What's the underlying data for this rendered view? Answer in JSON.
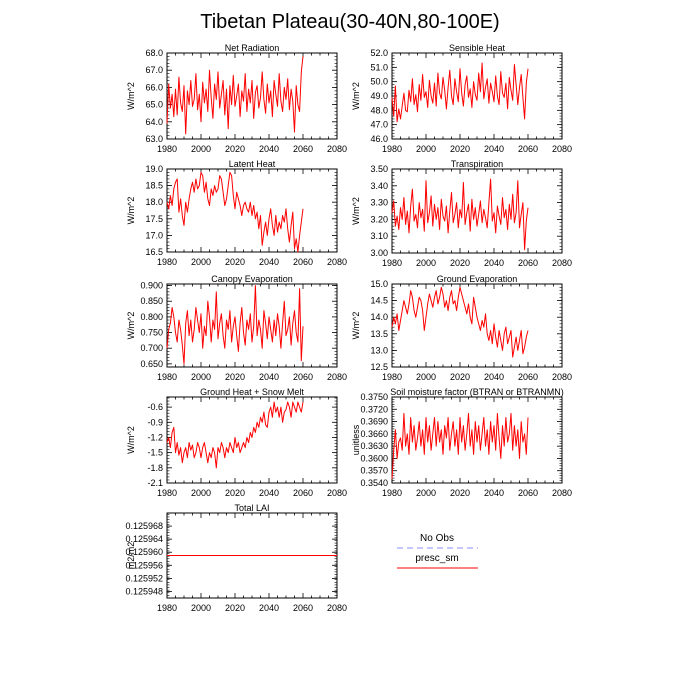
{
  "figure": {
    "title": "Tibetan Plateau(30-40N,80-100E)"
  },
  "colors": {
    "model": "#ff0000",
    "obs": "#8c8cff",
    "axis": "#000000"
  },
  "legend": [
    {
      "label": "No Obs",
      "style": "dashed",
      "color": "#8c8cff"
    },
    {
      "label": "presc_sm",
      "style": "solid",
      "color": "#ff0000"
    }
  ],
  "chart_data": [
    {
      "type": "line",
      "title": "Net Radiation",
      "xlabel": "",
      "ylabel": "W/m^2",
      "xlim": [
        1980,
        2080
      ],
      "ylim": [
        63.0,
        68.0
      ],
      "xticks": [
        "1980",
        "2000",
        "2020",
        "2040",
        "2060",
        "2080"
      ],
      "yticks": [
        "63.0",
        "64.0",
        "65.0",
        "66.0",
        "67.0",
        "68.0"
      ],
      "series": [
        {
          "name": "presc_sm",
          "x_start": 1980,
          "values": [
            63.9,
            66.2,
            64.8,
            65.6,
            64.3,
            65.9,
            64.4,
            66.6,
            65.1,
            64.6,
            66.1,
            63.3,
            65.8,
            65.0,
            66.4,
            64.9,
            65.3,
            66.8,
            64.7,
            65.6,
            64.0,
            66.3,
            65.1,
            65.9,
            64.6,
            67.0,
            65.4,
            64.2,
            66.2,
            65.3,
            66.9,
            64.8,
            65.6,
            66.4,
            64.4,
            65.9,
            63.6,
            66.1,
            65.0,
            66.7,
            64.9,
            65.5,
            66.2,
            64.3,
            65.8,
            65.2,
            66.8,
            64.6,
            65.9,
            65.1,
            66.4,
            64.2,
            65.7,
            66.1,
            64.8,
            65.4,
            66.9,
            65.3,
            64.5,
            66.2,
            65.1,
            65.8,
            64.3,
            66.4,
            65.6,
            64.9,
            66.8,
            65.2,
            64.6,
            66.0,
            65.3,
            66.5,
            64.7,
            65.9,
            65.2,
            63.4,
            66.1,
            65.0,
            64.6,
            66.9,
            67.8
          ]
        }
      ]
    },
    {
      "type": "line",
      "title": "Sensible Heat",
      "xlabel": "",
      "ylabel": "W/m^2",
      "xlim": [
        1980,
        2080
      ],
      "ylim": [
        46.0,
        52.0
      ],
      "xticks": [
        "1980",
        "2000",
        "2020",
        "2040",
        "2060",
        "2080"
      ],
      "yticks": [
        "46.0",
        "47.0",
        "48.0",
        "49.0",
        "50.0",
        "51.0",
        "52.0"
      ],
      "series": [
        {
          "name": "presc_sm",
          "x_start": 1980,
          "values": [
            48.9,
            47.6,
            49.7,
            47.2,
            48.1,
            47.4,
            48.3,
            49.2,
            48.0,
            47.9,
            49.4,
            48.6,
            50.2,
            48.4,
            49.1,
            47.9,
            49.8,
            48.7,
            50.5,
            48.9,
            49.3,
            48.2,
            50.1,
            49.0,
            48.5,
            49.9,
            48.3,
            50.6,
            49.2,
            48.8,
            50.3,
            49.4,
            48.1,
            49.6,
            50.8,
            49.0,
            48.4,
            50.2,
            49.3,
            48.6,
            50.9,
            49.2,
            48.3,
            49.8,
            50.4,
            48.9,
            49.5,
            48.2,
            50.0,
            49.1,
            48.7,
            50.6,
            49.3,
            51.3,
            48.8,
            49.6,
            50.2,
            48.5,
            49.9,
            49.3,
            48.6,
            50.4,
            49.0,
            48.4,
            50.7,
            49.2,
            48.9,
            49.9,
            48.1,
            50.3,
            49.4,
            48.7,
            51.2,
            49.8,
            48.4,
            49.6,
            50.5,
            48.9,
            47.4,
            49.9,
            50.9
          ]
        }
      ]
    },
    {
      "type": "line",
      "title": "Latent Heat",
      "xlabel": "",
      "ylabel": "W/m^2",
      "xlim": [
        1980,
        2080
      ],
      "ylim": [
        16.5,
        19.0
      ],
      "xticks": [
        "1980",
        "2000",
        "2020",
        "2040",
        "2060",
        "2080"
      ],
      "yticks": [
        "16.5",
        "17.0",
        "17.5",
        "18.0",
        "18.5",
        "19.0"
      ],
      "series": [
        {
          "name": "presc_sm",
          "x_start": 1980,
          "values": [
            18.0,
            17.8,
            18.2,
            17.9,
            18.4,
            18.6,
            18.7,
            17.7,
            18.1,
            17.6,
            17.3,
            18.0,
            17.7,
            18.1,
            18.4,
            18.6,
            18.3,
            18.7,
            18.4,
            18.5,
            18.9,
            18.8,
            18.3,
            18.6,
            18.1,
            17.9,
            18.4,
            18.2,
            18.5,
            18.3,
            18.4,
            18.8,
            18.7,
            18.3,
            17.9,
            18.1,
            18.5,
            18.9,
            18.8,
            18.2,
            17.8,
            18.3,
            18.1,
            17.9,
            17.6,
            17.9,
            18.0,
            17.8,
            17.7,
            18.0,
            17.6,
            17.9,
            17.5,
            17.7,
            17.2,
            17.6,
            16.7,
            17.1,
            17.4,
            17.0,
            17.5,
            17.8,
            17.3,
            17.0,
            17.6,
            17.1,
            17.4,
            17.2,
            17.6,
            17.4,
            17.8,
            17.2,
            16.8,
            17.3,
            17.7,
            16.6,
            16.9,
            16.5,
            17.0,
            17.4,
            17.8
          ]
        }
      ]
    },
    {
      "type": "line",
      "title": "Transpiration",
      "xlabel": "",
      "ylabel": "W/m^2",
      "xlim": [
        1980,
        2080
      ],
      "ylim": [
        3.0,
        3.5
      ],
      "xticks": [
        "1980",
        "2000",
        "2020",
        "2040",
        "2060",
        "2080"
      ],
      "yticks": [
        "3.00",
        "3.10",
        "3.20",
        "3.30",
        "3.40",
        "3.50"
      ],
      "series": [
        {
          "name": "presc_sm",
          "x_start": 1980,
          "values": [
            3.24,
            3.31,
            3.16,
            3.22,
            3.14,
            3.27,
            3.2,
            3.33,
            3.17,
            3.25,
            3.12,
            3.28,
            3.38,
            3.19,
            3.23,
            3.15,
            3.3,
            3.21,
            3.26,
            3.13,
            3.43,
            3.18,
            3.24,
            3.34,
            3.16,
            3.29,
            3.2,
            3.27,
            3.14,
            3.32,
            3.22,
            3.19,
            3.28,
            3.12,
            3.25,
            3.36,
            3.18,
            3.23,
            3.3,
            3.15,
            3.26,
            3.21,
            3.42,
            3.17,
            3.24,
            3.29,
            3.13,
            3.32,
            3.2,
            3.27,
            3.16,
            3.23,
            3.31,
            3.18,
            3.26,
            3.21,
            3.15,
            3.3,
            3.44,
            3.19,
            3.24,
            3.12,
            3.28,
            3.22,
            3.17,
            3.33,
            3.21,
            3.26,
            3.14,
            3.29,
            3.2,
            3.35,
            3.18,
            3.24,
            3.43,
            3.15,
            3.23,
            3.3,
            3.02,
            3.19,
            3.27
          ]
        }
      ]
    },
    {
      "type": "line",
      "title": "Canopy Evaporation",
      "xlabel": "",
      "ylabel": "W/m^2",
      "xlim": [
        1980,
        2080
      ],
      "ylim": [
        0.64,
        0.905
      ],
      "xticks": [
        "1980",
        "2000",
        "2020",
        "2040",
        "2060",
        "2080"
      ],
      "yticks": [
        "0.650",
        "0.700",
        "0.750",
        "0.800",
        "0.850",
        "0.900"
      ],
      "series": [
        {
          "name": "presc_sm",
          "x_start": 1980,
          "values": [
            0.7,
            0.76,
            0.78,
            0.83,
            0.8,
            0.75,
            0.72,
            0.79,
            0.76,
            0.71,
            0.65,
            0.78,
            0.82,
            0.74,
            0.79,
            0.72,
            0.76,
            0.83,
            0.79,
            0.75,
            0.81,
            0.7,
            0.77,
            0.74,
            0.85,
            0.8,
            0.72,
            0.79,
            0.76,
            0.88,
            0.73,
            0.78,
            0.81,
            0.74,
            0.7,
            0.79,
            0.76,
            0.82,
            0.72,
            0.77,
            0.8,
            0.74,
            0.69,
            0.78,
            0.83,
            0.75,
            0.71,
            0.79,
            0.76,
            0.81,
            0.72,
            0.77,
            0.9,
            0.74,
            0.79,
            0.76,
            0.7,
            0.82,
            0.78,
            0.73,
            0.8,
            0.76,
            0.72,
            0.79,
            0.74,
            0.81,
            0.77,
            0.7,
            0.78,
            0.85,
            0.74,
            0.76,
            0.8,
            0.71,
            0.78,
            0.82,
            0.75,
            0.72,
            0.89,
            0.66,
            0.77
          ]
        }
      ]
    },
    {
      "type": "line",
      "title": "Ground Evaporation",
      "xlabel": "",
      "ylabel": "W/m^2",
      "xlim": [
        1980,
        2080
      ],
      "ylim": [
        12.5,
        15.0
      ],
      "xticks": [
        "1980",
        "2000",
        "2020",
        "2040",
        "2060",
        "2080"
      ],
      "yticks": [
        "12.5",
        "13.0",
        "13.5",
        "14.0",
        "14.5",
        "15.0"
      ],
      "series": [
        {
          "name": "presc_sm",
          "x_start": 1980,
          "values": [
            13.7,
            14.0,
            13.8,
            14.1,
            13.6,
            13.9,
            14.2,
            14.5,
            14.3,
            14.1,
            14.4,
            14.8,
            14.6,
            14.2,
            14.0,
            14.3,
            14.6,
            14.5,
            14.2,
            13.6,
            14.0,
            14.4,
            14.7,
            14.5,
            14.3,
            14.6,
            14.8,
            14.4,
            14.6,
            14.9,
            14.7,
            14.3,
            14.5,
            14.2,
            14.6,
            14.8,
            14.4,
            14.5,
            14.2,
            14.6,
            14.9,
            14.7,
            14.5,
            14.3,
            14.1,
            14.4,
            14.0,
            13.8,
            14.6,
            14.3,
            14.0,
            13.8,
            13.6,
            13.9,
            13.7,
            14.1,
            13.5,
            13.3,
            13.6,
            13.2,
            13.8,
            13.4,
            13.1,
            13.6,
            13.3,
            13.0,
            13.5,
            13.7,
            13.2,
            13.4,
            13.6,
            12.8,
            13.1,
            13.4,
            13.0,
            13.3,
            13.6,
            12.9,
            13.1,
            13.4,
            13.6
          ]
        }
      ]
    },
    {
      "type": "line",
      "title": "Ground Heat + Snow Melt",
      "xlabel": "",
      "ylabel": "W/m^2",
      "xlim": [
        1980,
        2080
      ],
      "ylim": [
        -2.1,
        -0.4
      ],
      "xticks": [
        "1980",
        "2000",
        "2020",
        "2040",
        "2060",
        "2080"
      ],
      "yticks": [
        "-2.1",
        "-1.8",
        "-1.5",
        "-1.2",
        "-0.9",
        "-0.6"
      ],
      "series": [
        {
          "name": "presc_sm",
          "x_start": 1980,
          "values": [
            -1.3,
            -1.2,
            -1.4,
            -1.1,
            -1.0,
            -1.5,
            -1.3,
            -1.55,
            -1.4,
            -1.7,
            -1.5,
            -1.4,
            -1.6,
            -1.3,
            -1.45,
            -1.35,
            -1.6,
            -1.5,
            -1.3,
            -1.4,
            -1.6,
            -1.4,
            -1.3,
            -1.5,
            -1.7,
            -1.5,
            -1.6,
            -1.4,
            -1.5,
            -1.8,
            -1.4,
            -1.5,
            -1.3,
            -1.4,
            -1.6,
            -1.4,
            -1.5,
            -1.3,
            -1.4,
            -1.5,
            -1.2,
            -1.4,
            -1.3,
            -1.5,
            -1.4,
            -1.3,
            -1.4,
            -1.2,
            -1.3,
            -1.1,
            -1.2,
            -1.0,
            -1.1,
            -0.9,
            -1.0,
            -0.8,
            -0.9,
            -0.7,
            -0.95,
            -1.0,
            -0.7,
            -0.6,
            -0.8,
            -0.5,
            -0.7,
            -0.6,
            -0.8,
            -0.6,
            -0.9,
            -0.7,
            -0.65,
            -0.5,
            -0.6,
            -0.8,
            -0.5,
            -0.6,
            -0.7,
            -0.5,
            -0.6,
            -0.7,
            -0.5
          ]
        }
      ]
    },
    {
      "type": "line",
      "title": "Soil moisture factor (BTRAN or BTRANMN)",
      "xlabel": "",
      "ylabel": "unitless",
      "xlim": [
        1980,
        2080
      ],
      "ylim": [
        0.354,
        0.375
      ],
      "xticks": [
        "1980",
        "2000",
        "2020",
        "2040",
        "2060",
        "2080"
      ],
      "yticks": [
        "0.3540",
        "0.3570",
        "0.3600",
        "0.3630",
        "0.3660",
        "0.3690",
        "0.3720",
        "0.3750"
      ],
      "series": [
        {
          "name": "presc_sm",
          "x_start": 1980,
          "values": [
            0.355,
            0.362,
            0.367,
            0.36,
            0.364,
            0.365,
            0.362,
            0.371,
            0.363,
            0.366,
            0.361,
            0.37,
            0.364,
            0.368,
            0.362,
            0.365,
            0.369,
            0.363,
            0.367,
            0.361,
            0.37,
            0.364,
            0.368,
            0.362,
            0.366,
            0.37,
            0.363,
            0.369,
            0.364,
            0.367,
            0.361,
            0.368,
            0.365,
            0.37,
            0.362,
            0.366,
            0.369,
            0.363,
            0.367,
            0.361,
            0.37,
            0.364,
            0.368,
            0.362,
            0.366,
            0.371,
            0.363,
            0.367,
            0.361,
            0.369,
            0.364,
            0.368,
            0.362,
            0.366,
            0.37,
            0.363,
            0.367,
            0.361,
            0.369,
            0.364,
            0.368,
            0.362,
            0.371,
            0.365,
            0.36,
            0.368,
            0.363,
            0.37,
            0.364,
            0.366,
            0.371,
            0.362,
            0.368,
            0.363,
            0.367,
            0.36,
            0.369,
            0.364,
            0.366,
            0.361,
            0.37
          ]
        }
      ]
    },
    {
      "type": "line",
      "title": "Total LAI",
      "xlabel": "",
      "ylabel": "m2/m2",
      "xlim": [
        1980,
        2080
      ],
      "ylim": [
        0.125946,
        0.125972
      ],
      "xticks": [
        "1980",
        "2000",
        "2020",
        "2040",
        "2060",
        "2080"
      ],
      "yticks": [
        "0.125948",
        "0.125952",
        "0.125956",
        "0.125960",
        "0.125964",
        "0.125968"
      ],
      "series": [
        {
          "name": "presc_sm",
          "x_start": 1980,
          "constant": 0.125959
        }
      ]
    }
  ]
}
